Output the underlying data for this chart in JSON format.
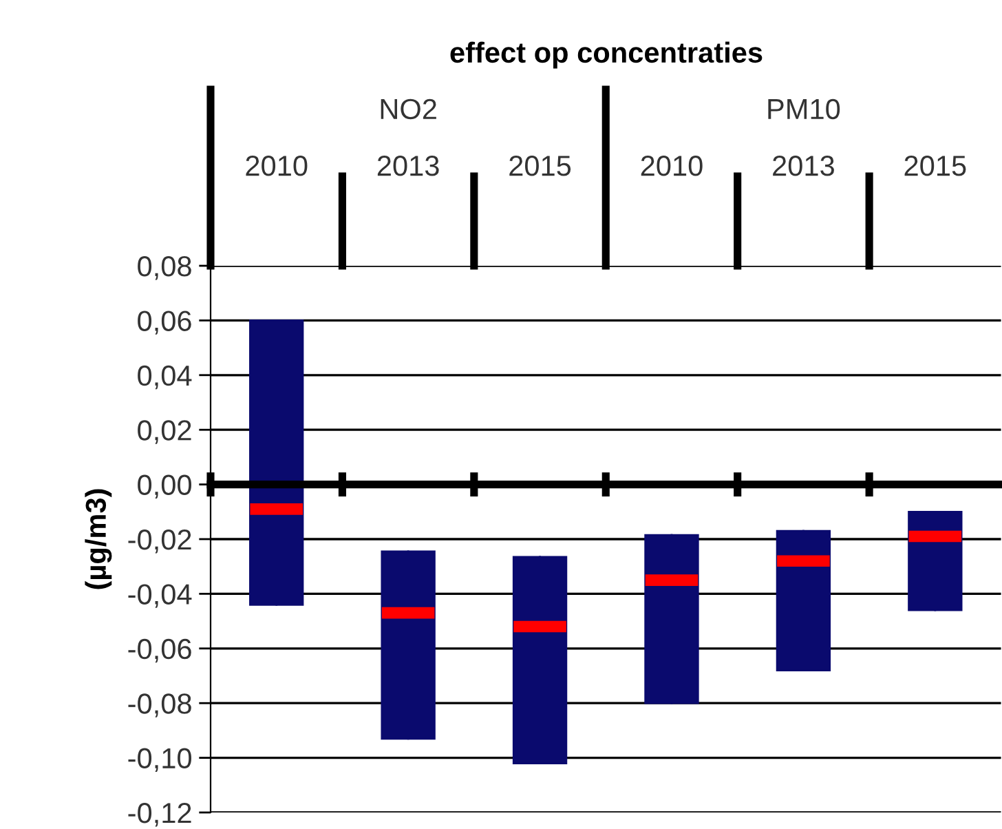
{
  "chart_data": {
    "type": "box",
    "title": "effect op concentraties",
    "ylabel": "(µg/m3)",
    "categories": [
      "2010",
      "2013",
      "2015",
      "2010",
      "2013",
      "2015"
    ],
    "annotations": [
      "NO2",
      "PM10"
    ],
    "series": [
      {
        "color": "#0a0a6e",
        "boxes": [
          {
            "low": -0.044,
            "q1": -0.044,
            "median": -0.009,
            "q3": 0.06,
            "high": 0.06
          },
          {
            "low": -0.093,
            "q1": -0.093,
            "median": -0.047,
            "q3": -0.0245,
            "high": -0.0245
          },
          {
            "low": -0.102,
            "q1": -0.102,
            "median": -0.052,
            "q3": -0.0265,
            "high": -0.0265
          },
          {
            "low": -0.08,
            "q1": -0.08,
            "median": -0.035,
            "q3": -0.0185,
            "high": -0.0185
          },
          {
            "low": -0.068,
            "q1": -0.068,
            "median": -0.028,
            "q3": -0.017,
            "high": -0.017
          },
          {
            "low": -0.046,
            "q1": -0.046,
            "median": -0.019,
            "q3": -0.01,
            "high": -0.01
          }
        ]
      }
    ],
    "ylim": [
      -0.12,
      0.08
    ],
    "yticks": [
      {
        "value": -0.12,
        "label": "-0,12"
      },
      {
        "value": -0.1,
        "label": "-0,10"
      },
      {
        "value": -0.08,
        "label": "-0,08"
      },
      {
        "value": -0.06,
        "label": "-0,06"
      },
      {
        "value": -0.04,
        "label": "-0,04"
      },
      {
        "value": -0.02,
        "label": "-0,02"
      },
      {
        "value": 0,
        "label": "0,00"
      },
      {
        "value": 0.02,
        "label": "0,02"
      },
      {
        "value": 0.04,
        "label": "0,04"
      },
      {
        "value": 0.06,
        "label": "0,06"
      },
      {
        "value": 0.08,
        "label": "0,08"
      }
    ],
    "grid": "y",
    "legend": false
  }
}
